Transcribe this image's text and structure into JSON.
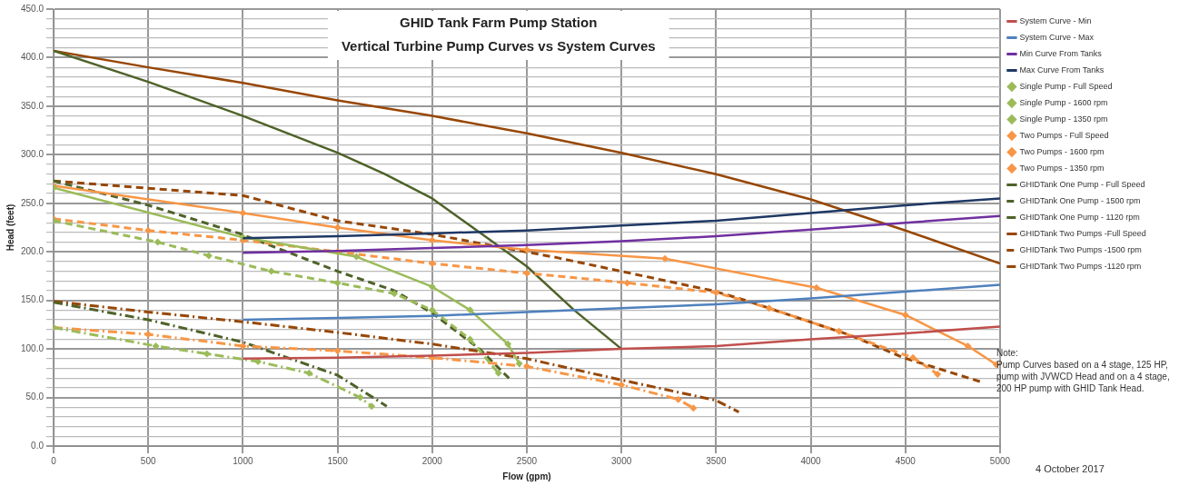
{
  "chart_data": {
    "type": "line",
    "title": "GHID Tank Farm Pump Station",
    "subtitle": "Vertical Turbine Pump Curves vs System Curves",
    "xlabel": "Flow (gpm)",
    "ylabel": "Head (feet)",
    "xlim": [
      0,
      5000
    ],
    "xticks": [
      0,
      500,
      1000,
      1500,
      2000,
      2500,
      3000,
      3500,
      4000,
      4500,
      5000
    ],
    "ylim": [
      0,
      450
    ],
    "yticks": [
      {
        "value": 0,
        "label": "0.0"
      },
      {
        "value": 10,
        "label": null
      },
      {
        "value": 20,
        "label": null
      },
      {
        "value": 30,
        "label": null
      },
      {
        "value": 40,
        "label": null
      },
      {
        "value": 50,
        "label": "50.0"
      },
      {
        "value": 60,
        "label": null
      },
      {
        "value": 70,
        "label": null
      },
      {
        "value": 80,
        "label": null
      },
      {
        "value": 90,
        "label": null
      },
      {
        "value": 100,
        "label": "100.0"
      },
      {
        "value": 110,
        "label": null
      },
      {
        "value": 120,
        "label": null
      },
      {
        "value": 130,
        "label": null
      },
      {
        "value": 140,
        "label": null
      },
      {
        "value": 150,
        "label": "150.0"
      },
      {
        "value": 160,
        "label": null
      },
      {
        "value": 170,
        "label": null
      },
      {
        "value": 180,
        "label": null
      },
      {
        "value": 190,
        "label": null
      },
      {
        "value": 200,
        "label": "200.0"
      },
      {
        "value": 210,
        "label": null
      },
      {
        "value": 220,
        "label": null
      },
      {
        "value": 230,
        "label": null
      },
      {
        "value": 240,
        "label": null
      },
      {
        "value": 250,
        "label": "250.0"
      },
      {
        "value": 260,
        "label": null
      },
      {
        "value": 270,
        "label": null
      },
      {
        "value": 280,
        "label": null
      },
      {
        "value": 290,
        "label": null
      },
      {
        "value": 300,
        "label": "300.0"
      },
      {
        "value": 310,
        "label": null
      },
      {
        "value": 320,
        "label": null
      },
      {
        "value": 330,
        "label": null
      },
      {
        "value": 340,
        "label": null
      },
      {
        "value": 350,
        "label": "350.0"
      },
      {
        "value": 360,
        "label": null
      },
      {
        "value": 370,
        "label": null
      },
      {
        "value": 380,
        "label": null
      },
      {
        "value": 390,
        "label": null
      },
      {
        "value": 400,
        "label": "400.0"
      },
      {
        "value": 410,
        "label": null
      },
      {
        "value": 420,
        "label": null
      },
      {
        "value": 430,
        "label": null
      },
      {
        "value": 440,
        "label": null
      },
      {
        "value": 450,
        "label": "450.0"
      }
    ],
    "grid": true,
    "legend": "right",
    "series": [
      {
        "name": "System Curve - Min",
        "color": "#c0504d",
        "line_style": "solid",
        "x": [
          1000,
          1500,
          2000,
          2500,
          3000,
          3500,
          4000,
          4500,
          5000
        ],
        "values": [
          90,
          91,
          93,
          96,
          100,
          103,
          110,
          116,
          123
        ]
      },
      {
        "name": "System Curve - Max",
        "color": "#4f81bd",
        "line_style": "solid",
        "x": [
          1000,
          1500,
          2000,
          2500,
          3000,
          3500,
          4000,
          4500,
          5000
        ],
        "values": [
          130,
          132,
          134,
          138,
          142,
          146,
          152,
          159,
          166
        ]
      },
      {
        "name": "Min Curve From Tanks",
        "color": "#7030a0",
        "line_style": "solid",
        "x": [
          1000,
          1500,
          2000,
          2500,
          3000,
          3500,
          4000,
          4500,
          5000
        ],
        "values": [
          199,
          201,
          204,
          207,
          211,
          216,
          223,
          230,
          237
        ]
      },
      {
        "name": "Max Curve From Tanks",
        "color": "#1f3864",
        "line_style": "solid",
        "x": [
          1000,
          1500,
          2000,
          2500,
          3000,
          3500,
          4000,
          4500,
          5000
        ],
        "values": [
          214,
          216,
          219,
          222,
          227,
          232,
          240,
          248,
          255
        ]
      },
      {
        "name": "Single Pump - Full Speed",
        "color": "#9bbb59",
        "line_style": "solid",
        "marker": "diamond",
        "x": [
          0,
          1000,
          1600,
          2000,
          2200,
          2400,
          2460
        ],
        "values": [
          266,
          215,
          195,
          164,
          140,
          105,
          85
        ]
      },
      {
        "name": "Single Pump - 1600 rpm",
        "color": "#9bbb59",
        "line_style": "dashed",
        "marker": "diamond",
        "x": [
          0,
          550,
          820,
          1150,
          1500,
          1800,
          2000,
          2200,
          2350
        ],
        "values": [
          232,
          210,
          196,
          180,
          168,
          157,
          140,
          110,
          75
        ]
      },
      {
        "name": "Single Pump - 1350 rpm",
        "color": "#9bbb59",
        "line_style": "dashdot",
        "marker": "diamond",
        "x": [
          0,
          540,
          810,
          1080,
          1350,
          1620,
          1680
        ],
        "values": [
          122,
          103,
          95,
          87,
          75,
          50,
          41
        ]
      },
      {
        "name": "Two Pumps - Full Speed",
        "color": "#f79646",
        "line_style": "solid",
        "marker": "diamond",
        "x": [
          0,
          1000,
          1500,
          2000,
          2500,
          3230,
          4030,
          4500,
          4830,
          4980
        ],
        "values": [
          268,
          240,
          225,
          212,
          202,
          193,
          163,
          135,
          103,
          84
        ]
      },
      {
        "name": "Two Pumps - 1600 rpm",
        "color": "#f79646",
        "line_style": "dashed",
        "marker": "diamond",
        "x": [
          0,
          500,
          1000,
          1500,
          2000,
          2500,
          3030,
          3500,
          3780,
          4150,
          4540,
          4670
        ],
        "values": [
          234,
          222,
          212,
          200,
          188,
          178,
          168,
          158,
          142,
          118,
          91,
          74
        ]
      },
      {
        "name": "Two Pumps - 1350 rpm",
        "color": "#f79646",
        "line_style": "dashdot",
        "marker": "diamond",
        "x": [
          0,
          500,
          1000,
          1500,
          2000,
          2500,
          3000,
          3300,
          3380
        ],
        "values": [
          122,
          115,
          103,
          98,
          91,
          82,
          63,
          48,
          39
        ]
      },
      {
        "name": "GHIDTank One Pump - Full Speed",
        "color": "#4f6228",
        "line_style": "solid",
        "x": [
          0,
          500,
          1000,
          1500,
          1750,
          2000,
          2250,
          2500,
          2750,
          3000
        ],
        "values": [
          407,
          375,
          340,
          302,
          280,
          255,
          220,
          185,
          140,
          100
        ]
      },
      {
        "name": "GHIDTank One Pump - 1500 rpm",
        "color": "#4f6228",
        "line_style": "dashed",
        "x": [
          0,
          500,
          980,
          1500,
          1800,
          2000,
          2250,
          2410
        ],
        "values": [
          273,
          248,
          219,
          180,
          160,
          137,
          100,
          69
        ]
      },
      {
        "name": "GHIDTank One Pump - 1120 rpm",
        "color": "#4f6228",
        "line_style": "dashdot",
        "x": [
          0,
          500,
          1000,
          1500,
          1760
        ],
        "values": [
          148,
          130,
          107,
          73,
          41
        ]
      },
      {
        "name": "GHIDTank Two Pumps -Full Speed",
        "color": "#974706",
        "line_style": "solid",
        "x": [
          0,
          500,
          1000,
          1500,
          2000,
          2500,
          3000,
          3500,
          4000,
          4500,
          5000
        ],
        "values": [
          407,
          390,
          374,
          356,
          340,
          322,
          302,
          280,
          254,
          222,
          188
        ]
      },
      {
        "name": "GHIDTank Two Pumps -1500 rpm",
        "color": "#974706",
        "line_style": "dashed",
        "x": [
          0,
          1000,
          1500,
          2000,
          2660,
          3480,
          3640,
          4210,
          4490,
          4900
        ],
        "values": [
          273,
          258,
          232,
          218,
          194,
          160,
          151,
          114,
          91,
          66
        ]
      },
      {
        "name": "GHIDTank Two Pumps -1120 rpm",
        "color": "#974706",
        "line_style": "dashdot",
        "x": [
          0,
          500,
          1000,
          1500,
          2000,
          2500,
          3000,
          3500,
          3620
        ],
        "values": [
          149,
          138,
          128,
          117,
          105,
          90,
          68,
          47,
          35
        ]
      }
    ],
    "annotations": [
      "Note:\nPump Curves based on a 4 stage, 125 HP, pump with JVWCD Head and on a 4 stage, 200 HP pump with GHID Tank Head.",
      "4 October 2017"
    ]
  }
}
